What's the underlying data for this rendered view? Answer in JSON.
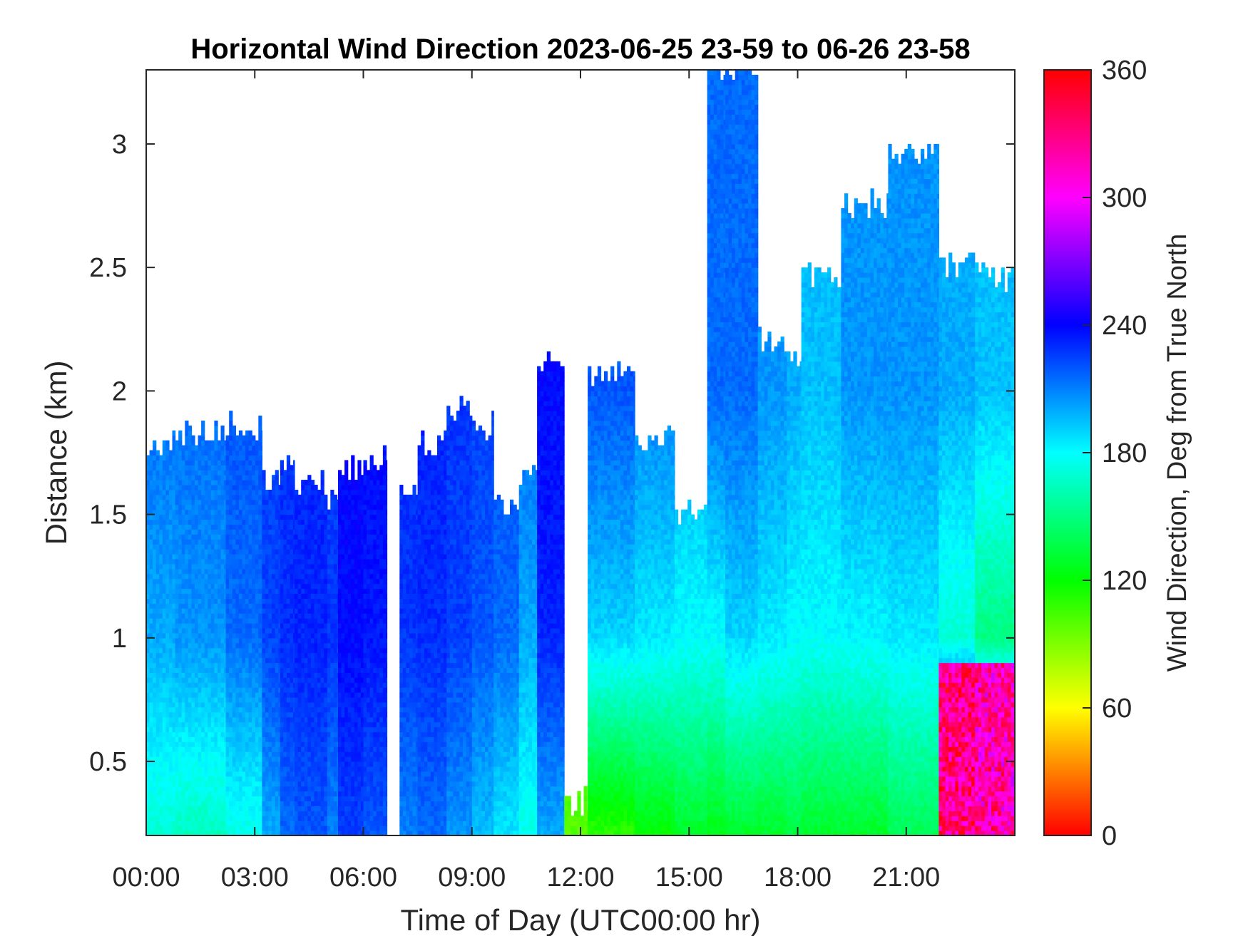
{
  "chart_data": {
    "type": "heatmap",
    "title": "Horizontal Wind Direction 2023-06-25 23-59 to 06-26 23-58",
    "xlabel": "Time of Day (UTC00:00 hr)",
    "ylabel": "Distance (km)",
    "colorbar_label": "Wind Direction, Deg from True North",
    "xlim_hours": [
      0,
      24
    ],
    "ylim_km": [
      0.2,
      3.3
    ],
    "clim_deg": [
      0,
      360
    ],
    "x_ticks": [
      {
        "hour": 0,
        "label": "00:00"
      },
      {
        "hour": 3,
        "label": "03:00"
      },
      {
        "hour": 6,
        "label": "06:00"
      },
      {
        "hour": 9,
        "label": "09:00"
      },
      {
        "hour": 12,
        "label": "12:00"
      },
      {
        "hour": 15,
        "label": "15:00"
      },
      {
        "hour": 18,
        "label": "18:00"
      },
      {
        "hour": 21,
        "label": "21:00"
      }
    ],
    "y_ticks": [
      {
        "km": 0.5,
        "label": "0.5"
      },
      {
        "km": 1,
        "label": "1"
      },
      {
        "km": 1.5,
        "label": "1.5"
      },
      {
        "km": 2,
        "label": "2"
      },
      {
        "km": 2.5,
        "label": "2.5"
      },
      {
        "km": 3,
        "label": "3"
      }
    ],
    "colorbar_ticks": [
      {
        "deg": 0,
        "label": "0"
      },
      {
        "deg": 60,
        "label": "60"
      },
      {
        "deg": 120,
        "label": "120"
      },
      {
        "deg": 180,
        "label": "180"
      },
      {
        "deg": 240,
        "label": "240"
      },
      {
        "deg": 300,
        "label": "300"
      },
      {
        "deg": 360,
        "label": "360"
      }
    ],
    "colormap": "hsv",
    "grid": false,
    "time_blocks": [
      {
        "start_h": 0.0,
        "end_h": 0.8,
        "top_km": 1.78,
        "low_deg": 170,
        "mid_deg": 200,
        "high_deg": 215
      },
      {
        "start_h": 0.8,
        "end_h": 2.2,
        "top_km": 1.82,
        "low_deg": 165,
        "mid_deg": 205,
        "high_deg": 215
      },
      {
        "start_h": 2.2,
        "end_h": 3.2,
        "top_km": 1.85,
        "low_deg": 175,
        "mid_deg": 215,
        "high_deg": 220
      },
      {
        "start_h": 3.2,
        "end_h": 3.7,
        "top_km": 1.62,
        "low_deg": 200,
        "mid_deg": 225,
        "high_deg": 225
      },
      {
        "start_h": 3.7,
        "end_h": 4.1,
        "top_km": 1.72,
        "low_deg": 215,
        "mid_deg": 230,
        "high_deg": 228
      },
      {
        "start_h": 4.1,
        "end_h": 5.0,
        "top_km": 1.62,
        "low_deg": 220,
        "mid_deg": 232,
        "high_deg": 230
      },
      {
        "start_h": 5.0,
        "end_h": 5.3,
        "top_km": 1.55,
        "low_deg": 210,
        "mid_deg": 228,
        "high_deg": 225
      },
      {
        "start_h": 5.3,
        "end_h": 6.0,
        "top_km": 1.68,
        "low_deg": 225,
        "mid_deg": 238,
        "high_deg": 240
      },
      {
        "start_h": 6.0,
        "end_h": 6.65,
        "top_km": 1.72,
        "low_deg": 220,
        "mid_deg": 235,
        "high_deg": 238
      },
      {
        "start_h": 6.65,
        "end_h": 7.0,
        "top_km": 0.0,
        "low_deg": 0,
        "mid_deg": 0,
        "high_deg": 0
      },
      {
        "start_h": 7.0,
        "end_h": 7.5,
        "top_km": 1.6,
        "low_deg": 210,
        "mid_deg": 228,
        "high_deg": 230
      },
      {
        "start_h": 7.5,
        "end_h": 8.3,
        "top_km": 1.78,
        "low_deg": 215,
        "mid_deg": 230,
        "high_deg": 232
      },
      {
        "start_h": 8.3,
        "end_h": 9.0,
        "top_km": 1.92,
        "low_deg": 205,
        "mid_deg": 225,
        "high_deg": 228
      },
      {
        "start_h": 9.0,
        "end_h": 9.6,
        "top_km": 1.85,
        "low_deg": 195,
        "mid_deg": 220,
        "high_deg": 225
      },
      {
        "start_h": 9.6,
        "end_h": 10.3,
        "top_km": 1.55,
        "low_deg": 185,
        "mid_deg": 215,
        "high_deg": 222
      },
      {
        "start_h": 10.3,
        "end_h": 10.8,
        "top_km": 1.65,
        "low_deg": 175,
        "mid_deg": 200,
        "high_deg": 215
      },
      {
        "start_h": 10.8,
        "end_h": 11.55,
        "top_km": 2.1,
        "low_deg": 200,
        "mid_deg": 232,
        "high_deg": 238
      },
      {
        "start_h": 11.55,
        "end_h": 12.2,
        "top_km": 0.33,
        "low_deg": 100,
        "mid_deg": 110,
        "high_deg": 110
      },
      {
        "start_h": 12.2,
        "end_h": 13.5,
        "top_km": 2.05,
        "low_deg": 110,
        "mid_deg": 190,
        "high_deg": 220
      },
      {
        "start_h": 13.5,
        "end_h": 14.6,
        "top_km": 1.8,
        "low_deg": 120,
        "mid_deg": 185,
        "high_deg": 210
      },
      {
        "start_h": 14.6,
        "end_h": 15.5,
        "top_km": 1.5,
        "low_deg": 130,
        "mid_deg": 180,
        "high_deg": 200
      },
      {
        "start_h": 15.5,
        "end_h": 16.0,
        "top_km": 3.3,
        "low_deg": 125,
        "mid_deg": 180,
        "high_deg": 215
      },
      {
        "start_h": 16.0,
        "end_h": 16.9,
        "top_km": 3.3,
        "low_deg": 130,
        "mid_deg": 190,
        "high_deg": 215
      },
      {
        "start_h": 16.9,
        "end_h": 17.7,
        "top_km": 2.2,
        "low_deg": 130,
        "mid_deg": 185,
        "high_deg": 205
      },
      {
        "start_h": 17.7,
        "end_h": 18.1,
        "top_km": 2.1,
        "low_deg": 135,
        "mid_deg": 180,
        "high_deg": 200
      },
      {
        "start_h": 18.1,
        "end_h": 19.2,
        "top_km": 2.45,
        "low_deg": 130,
        "mid_deg": 180,
        "high_deg": 195
      },
      {
        "start_h": 19.2,
        "end_h": 20.5,
        "top_km": 2.75,
        "low_deg": 130,
        "mid_deg": 182,
        "high_deg": 205
      },
      {
        "start_h": 20.5,
        "end_h": 21.9,
        "top_km": 2.95,
        "low_deg": 140,
        "mid_deg": 185,
        "high_deg": 205
      },
      {
        "start_h": 21.9,
        "end_h": 22.9,
        "top_km": 2.5,
        "low_deg": 330,
        "mid_deg": 170,
        "high_deg": 200
      },
      {
        "start_h": 22.9,
        "end_h": 24.0,
        "top_km": 2.45,
        "low_deg": 320,
        "mid_deg": 150,
        "high_deg": 195
      }
    ]
  }
}
